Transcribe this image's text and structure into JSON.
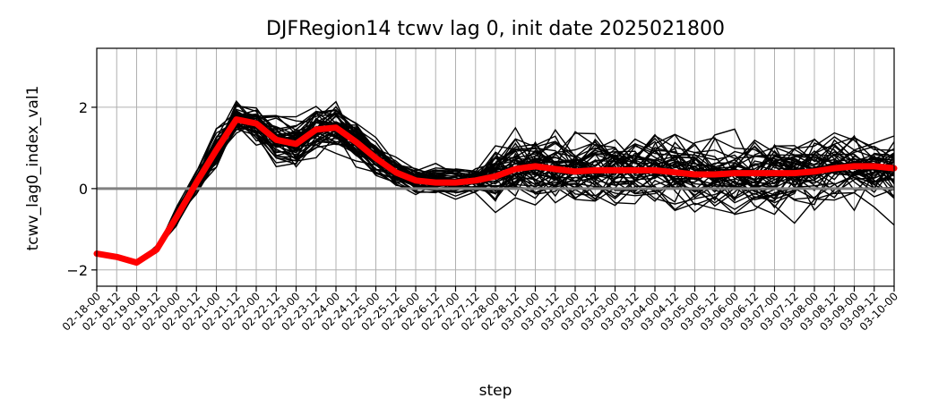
{
  "chart_data": {
    "type": "line",
    "title": "DJFRegion14 tcwv lag 0, init date 2025021800",
    "xlabel": "step",
    "ylabel": "tcwv_lag0_index_val1",
    "ylim": [
      -2.4,
      3.45
    ],
    "yticks": [
      -2,
      0,
      2
    ],
    "grid": true,
    "x": [
      "02-18-00",
      "02-18-12",
      "02-19-00",
      "02-19-12",
      "02-20-00",
      "02-20-12",
      "02-21-00",
      "02-21-12",
      "02-22-00",
      "02-22-12",
      "02-23-00",
      "02-23-12",
      "02-24-00",
      "02-24-12",
      "02-25-00",
      "02-25-12",
      "02-26-00",
      "02-26-12",
      "02-27-00",
      "02-27-12",
      "02-28-00",
      "02-28-12",
      "03-01-00",
      "03-01-12",
      "03-02-00",
      "03-02-12",
      "03-03-00",
      "03-03-12",
      "03-04-00",
      "03-04-12",
      "03-05-00",
      "03-05-12",
      "03-06-00",
      "03-06-12",
      "03-07-00",
      "03-07-12",
      "03-08-00",
      "03-08-12",
      "03-09-00",
      "03-09-12",
      "03-10-00"
    ],
    "zero_line": 0,
    "ensemble_members": 50,
    "ensemble_color": "#000000",
    "mean_color": "#ff0000",
    "zero_color": "#808080",
    "mean_series": [
      -1.6,
      -1.68,
      -1.82,
      -1.5,
      -0.7,
      0.15,
      0.95,
      1.7,
      1.6,
      1.2,
      1.1,
      1.45,
      1.5,
      1.15,
      0.75,
      0.4,
      0.2,
      0.15,
      0.15,
      0.2,
      0.3,
      0.48,
      0.55,
      0.48,
      0.42,
      0.45,
      0.45,
      0.45,
      0.45,
      0.4,
      0.35,
      0.35,
      0.38,
      0.38,
      0.38,
      0.38,
      0.42,
      0.5,
      0.55,
      0.55,
      0.5
    ]
  }
}
